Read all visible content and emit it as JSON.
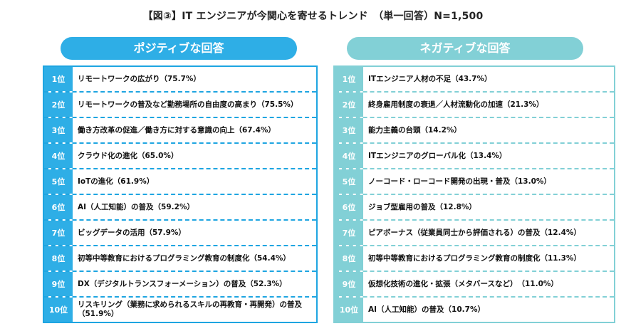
{
  "title": "【図③】IT エンジニアが今関心を寄せるトレンド　（単一回答）N=1,500",
  "positive": {
    "header": "ポジティブな回答",
    "items": [
      {
        "rank": "1位",
        "text": "リモートワークの広がり（75.7%）"
      },
      {
        "rank": "2位",
        "text": "リモートワークの普及など勤務場所の自由度の高まり（75.5%）"
      },
      {
        "rank": "3位",
        "text": "働き方改革の促進／働き方に対する意識の向上（67.4%）"
      },
      {
        "rank": "4位",
        "text": "クラウド化の進化（65.0%）"
      },
      {
        "rank": "5位",
        "text": "IoTの進化（61.9%）"
      },
      {
        "rank": "6位",
        "text": "AI（人工知能）の普及（59.2%）"
      },
      {
        "rank": "7位",
        "text": "ビッグデータの活用（57.9%）"
      },
      {
        "rank": "8位",
        "text": "初等中等教育におけるプログラミング教育の制度化（54.4%）"
      },
      {
        "rank": "9位",
        "text": "DX（デジタルトランスフォーメーション）の普及（52.3%）"
      },
      {
        "rank": "10位",
        "text": "リスキリング（業務に求められるスキルの再教育・再開発）の普及（51.9%）"
      }
    ]
  },
  "negative": {
    "header": "ネガティブな回答",
    "items": [
      {
        "rank": "1位",
        "text": "ITエンジニア人材の不足（43.7%）"
      },
      {
        "rank": "2位",
        "text": "終身雇用制度の衰退／人材流動化の加速（21.3%）"
      },
      {
        "rank": "3位",
        "text": "能力主義の台頭（14.2%）"
      },
      {
        "rank": "4位",
        "text": "ITエンジニアのグローバル化（13.4%）"
      },
      {
        "rank": "5位",
        "text": "ノーコード・ローコード開発の出現・普及（13.0%）"
      },
      {
        "rank": "6位",
        "text": "ジョブ型雇用の普及（12.8%）"
      },
      {
        "rank": "7位",
        "text": "ピアボーナス（従業員同士から評価される）の普及（12.4%）"
      },
      {
        "rank": "8位",
        "text": "初等中等教育におけるプログラミング教育の制度化（11.3%）"
      },
      {
        "rank": "9位",
        "text": "仮想化技術の進化・拡張（メタバースなど）　（11.0%）"
      },
      {
        "rank": "10位",
        "text": "AI（人工知能）の普及（10.7%）"
      }
    ]
  }
}
